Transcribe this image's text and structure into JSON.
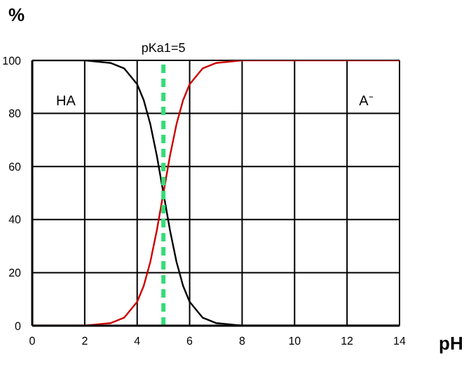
{
  "chart_data": {
    "type": "line",
    "xlabel": "pH",
    "ylabel": "%",
    "xlim": [
      0,
      14
    ],
    "xticks": [
      0,
      2,
      4,
      6,
      8,
      10,
      12,
      14
    ],
    "ylim": [
      0,
      100
    ],
    "yticks": [
      0,
      20,
      40,
      60,
      80,
      100
    ],
    "grid": true,
    "marker": "none",
    "line_style": "solid",
    "series": [
      {
        "name": "HA",
        "color": "#000000",
        "x": [
          0,
          1,
          2,
          3,
          3.5,
          4,
          4.25,
          4.5,
          4.75,
          5,
          5.25,
          5.5,
          5.75,
          6,
          6.5,
          7,
          8,
          10,
          12,
          14
        ],
        "values": [
          100,
          100,
          100,
          99,
          97,
          91,
          85,
          76,
          64,
          50,
          36,
          24,
          15,
          9,
          3,
          1,
          0,
          0,
          0,
          0
        ]
      },
      {
        "name": "A⁻",
        "color": "#cc0000",
        "x": [
          0,
          1,
          2,
          3,
          3.5,
          4,
          4.25,
          4.5,
          4.75,
          5,
          5.25,
          5.5,
          5.75,
          6,
          6.5,
          7,
          8,
          10,
          12,
          14
        ],
        "values": [
          0,
          0,
          0,
          1,
          3,
          9,
          15,
          24,
          36,
          50,
          64,
          76,
          85,
          91,
          97,
          99,
          100,
          100,
          100,
          100
        ]
      }
    ],
    "ref_lines": [
      {
        "axis": "x",
        "value": 5,
        "label": "pKa1=5",
        "color": "#33dd77",
        "line_style": "dashed"
      }
    ]
  }
}
